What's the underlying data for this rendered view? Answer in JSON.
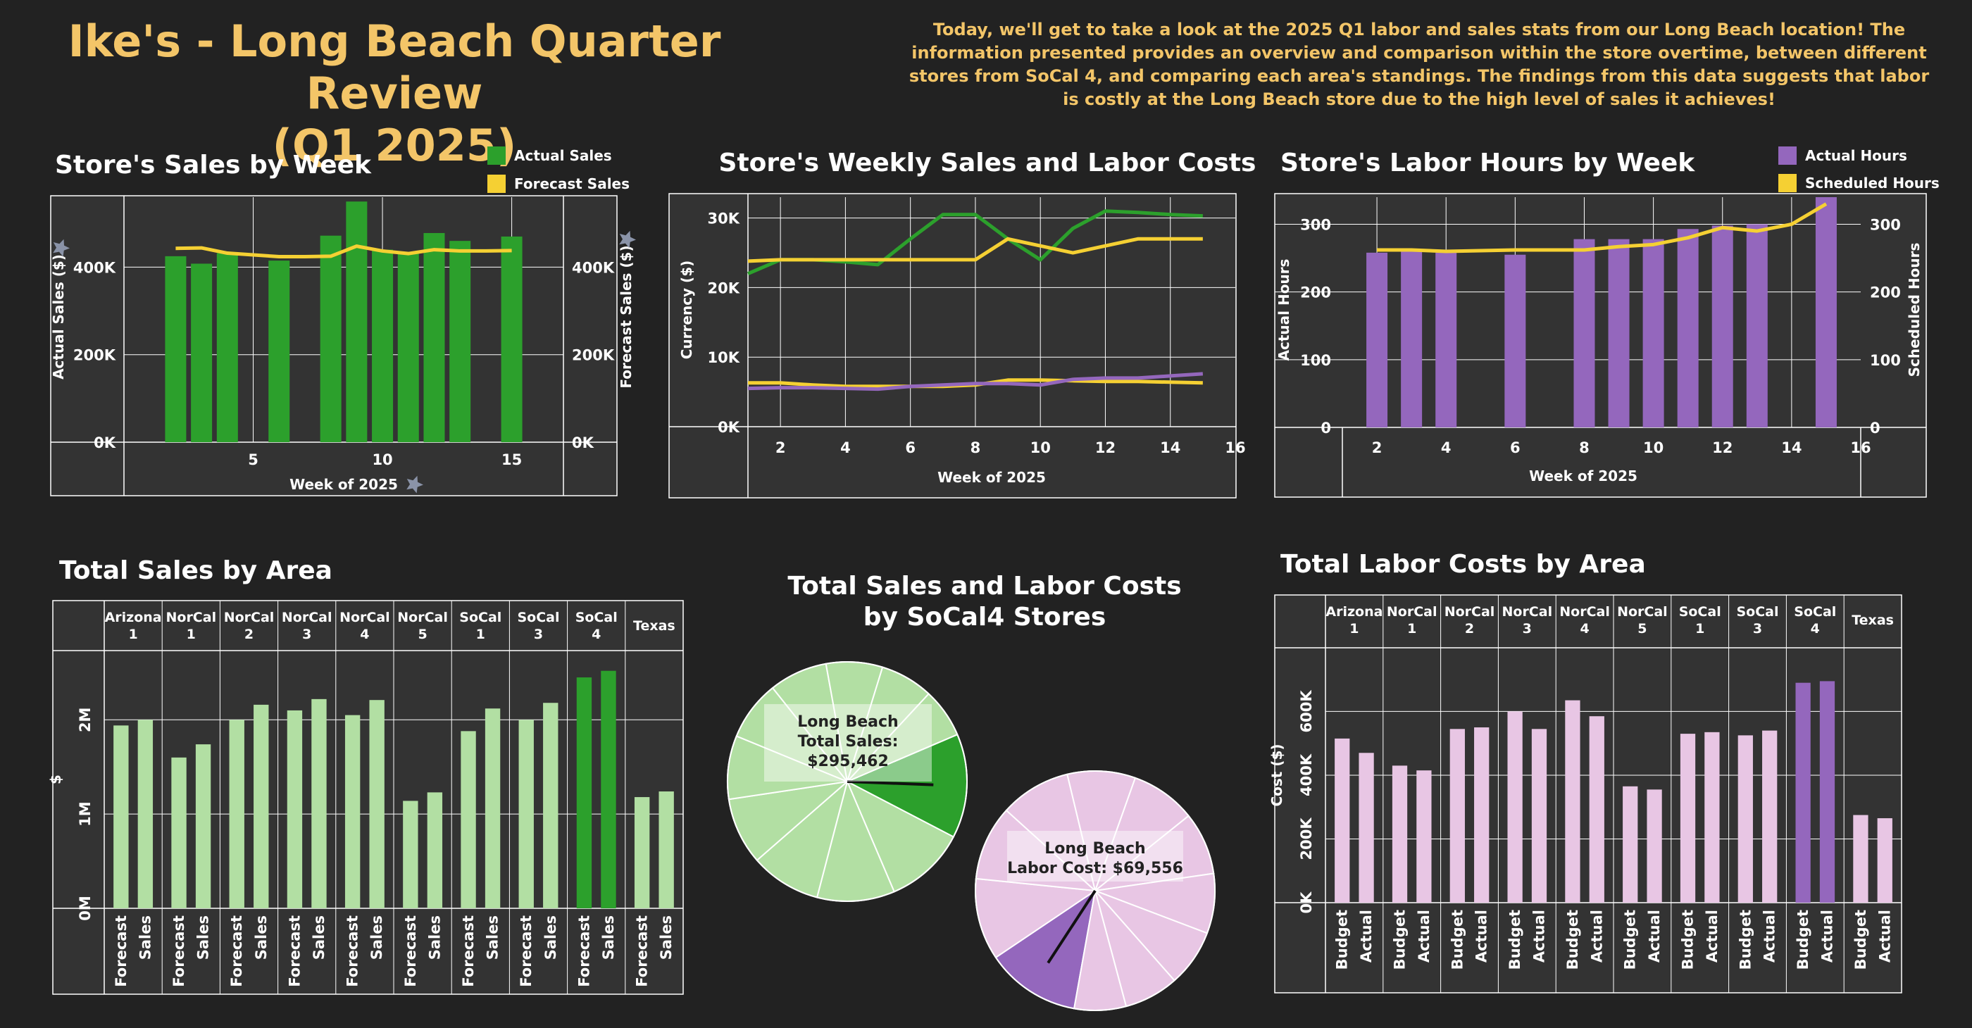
{
  "header": {
    "title_line1": "Ike's - Long Beach Quarter Review",
    "title_line2": "(Q1 2025)",
    "intro": "Today, we'll get to take a look at the 2025 Q1 labor and sales stats from our Long Beach location! The information presented provides an overview and comparison within the store overtime, between different stores from SoCal 4, and comparing each area's standings. The findings from this data suggests that labor is costly at the Long Beach store due to the high level of sales it achieves!"
  },
  "colors": {
    "background": "#222222",
    "panel": "#333333",
    "grid": "#ffffff",
    "title_accent": "#f3c568",
    "green": "#2ca02c",
    "light_green": "#b2dfa3",
    "gold": "#f5d033",
    "purple": "#9467bd",
    "light_purple": "#e8c6e4"
  },
  "chart_data": [
    {
      "id": "sales_by_week",
      "type": "bar",
      "title": "Store's Sales by Week",
      "xlabel": "Week of 2025",
      "ylabel": "Actual Sales ($)",
      "y2label": "Forecast Sales ($)",
      "xlim": [
        0,
        17
      ],
      "ylim": [
        0,
        560000
      ],
      "xticks": [
        5,
        10,
        15
      ],
      "xtick_labels": [
        "5",
        "10",
        "15"
      ],
      "yticks": [
        0,
        200000,
        400000
      ],
      "ytick_labels": [
        "0K",
        "200K",
        "400K"
      ],
      "legend": "top-right",
      "series": [
        {
          "name": "Actual Sales",
          "kind": "bar",
          "color": "#2ca02c",
          "x": [
            2,
            3,
            4,
            6,
            8,
            9,
            10,
            11,
            12,
            13,
            15
          ],
          "values": [
            425000,
            408000,
            432000,
            415000,
            472000,
            550000,
            440000,
            432000,
            478000,
            460000,
            470000
          ]
        },
        {
          "name": "Forecast Sales",
          "kind": "line",
          "color": "#f5d033",
          "x": [
            2,
            3,
            4,
            5,
            6,
            7,
            8,
            9,
            10,
            11,
            12,
            13,
            14,
            15
          ],
          "values": [
            443000,
            444000,
            432000,
            428000,
            424000,
            424000,
            425000,
            448000,
            437000,
            431000,
            440000,
            437000,
            437000,
            438000
          ]
        }
      ]
    },
    {
      "id": "weekly_sales_labor",
      "type": "line",
      "title": "Store's Weekly Sales and Labor Costs",
      "xlabel": "Week of 2025",
      "ylabel": "Currency ($)",
      "xlim": [
        1,
        16
      ],
      "ylim": [
        0,
        33000
      ],
      "xticks": [
        2,
        4,
        6,
        8,
        10,
        12,
        14,
        16
      ],
      "xtick_labels": [
        "2",
        "4",
        "6",
        "8",
        "10",
        "12",
        "14",
        "16"
      ],
      "yticks": [
        0,
        10000,
        20000,
        30000
      ],
      "ytick_labels": [
        "0K",
        "10K",
        "20K",
        "30K"
      ],
      "series": [
        {
          "color": "#2ca02c",
          "x": [
            1,
            2,
            3,
            4,
            5,
            6,
            7,
            8,
            9,
            10,
            11,
            12,
            13,
            14,
            15
          ],
          "values": [
            22000,
            24000,
            24000,
            23700,
            23300,
            27000,
            30500,
            30500,
            27000,
            24000,
            28500,
            31000,
            30800,
            30500,
            30300
          ]
        },
        {
          "color": "#f5d033",
          "x": [
            1,
            2,
            3,
            4,
            5,
            6,
            7,
            8,
            9,
            10,
            11,
            12,
            13,
            14,
            15
          ],
          "values": [
            23800,
            24000,
            24000,
            24000,
            24000,
            24000,
            24000,
            24000,
            27000,
            26000,
            25000,
            26000,
            27000,
            27000,
            27000
          ]
        },
        {
          "color": "#f5d033",
          "x": [
            1,
            2,
            3,
            4,
            5,
            6,
            7,
            8,
            9,
            10,
            11,
            12,
            13,
            14,
            15
          ],
          "values": [
            6300,
            6300,
            6000,
            5800,
            5800,
            5800,
            5800,
            6000,
            6700,
            6700,
            6600,
            6500,
            6500,
            6400,
            6300
          ]
        },
        {
          "color": "#9467bd",
          "x": [
            1,
            2,
            3,
            4,
            5,
            6,
            7,
            8,
            9,
            10,
            11,
            12,
            13,
            14,
            15
          ],
          "values": [
            5500,
            5600,
            5600,
            5500,
            5400,
            5800,
            6000,
            6200,
            6200,
            6000,
            6800,
            7000,
            7000,
            7300,
            7600
          ]
        }
      ]
    },
    {
      "id": "labor_hours_by_week",
      "type": "bar",
      "title": "Store's Labor Hours by Week",
      "xlabel": "Week of 2025",
      "ylabel": "Actual Hours",
      "y2label": "Scheduled Hours",
      "xlim": [
        1,
        16
      ],
      "ylim": [
        0,
        340
      ],
      "xticks": [
        2,
        4,
        6,
        8,
        10,
        12,
        14,
        16
      ],
      "xtick_labels": [
        "2",
        "4",
        "6",
        "8",
        "10",
        "12",
        "14",
        "16"
      ],
      "yticks": [
        0,
        100,
        200,
        300
      ],
      "ytick_labels": [
        "0",
        "100",
        "200",
        "300"
      ],
      "legend": "top-right",
      "series": [
        {
          "name": "Actual Hours",
          "kind": "bar",
          "color": "#9467bd",
          "x": [
            2,
            3,
            4,
            6,
            8,
            9,
            10,
            11,
            12,
            13,
            15
          ],
          "values": [
            258,
            262,
            258,
            255,
            278,
            278,
            278,
            293,
            298,
            300,
            340
          ]
        },
        {
          "name": "Scheduled Hours",
          "kind": "line",
          "color": "#f5d033",
          "x": [
            2,
            3,
            4,
            5,
            6,
            7,
            8,
            9,
            10,
            11,
            12,
            13,
            14,
            15
          ],
          "values": [
            262,
            262,
            260,
            261,
            262,
            262,
            262,
            267,
            270,
            280,
            295,
            290,
            300,
            330
          ]
        }
      ]
    },
    {
      "id": "total_sales_by_area",
      "type": "bar",
      "title": "Total Sales by Area",
      "ylabel": "$",
      "ylim": [
        0,
        2600000
      ],
      "yticks": [
        0,
        1000000,
        2000000
      ],
      "ytick_labels": [
        "0M",
        "1M",
        "2M"
      ],
      "groups": [
        "Arizona 1",
        "NorCal 1",
        "NorCal 2",
        "NorCal 3",
        "NorCal 4",
        "NorCal 5",
        "SoCal 1",
        "SoCal 3",
        "SoCal 4",
        "Texas"
      ],
      "subcategories": [
        "Forecast",
        "Sales"
      ],
      "highlight_group": "SoCal 4",
      "series": [
        {
          "name": "Forecast",
          "values": [
            1940000,
            1600000,
            2000000,
            2100000,
            2050000,
            1140000,
            1880000,
            2000000,
            2450000,
            1180000
          ]
        },
        {
          "name": "Sales",
          "values": [
            2000000,
            1740000,
            2160000,
            2220000,
            2210000,
            1230000,
            2120000,
            2180000,
            2520000,
            1240000
          ]
        }
      ]
    },
    {
      "id": "socal4_sales_pie",
      "type": "pie",
      "title": "Total Sales and Labor Costs by SoCal4 Stores",
      "label": "Long Beach Total Sales: $295,462",
      "highlight": "Long Beach",
      "slices": [
        295462,
        230000,
        220000,
        200000,
        190000,
        180000,
        170000,
        165000,
        160000,
        150000,
        140000
      ]
    },
    {
      "id": "socal4_labor_pie",
      "type": "pie",
      "label": "Long Beach Labor Cost: $69,556",
      "highlight": "Long Beach",
      "slices": [
        69556,
        60000,
        55000,
        52000,
        50000,
        48000,
        46000,
        44000,
        42000,
        40000,
        38000
      ]
    },
    {
      "id": "total_labor_by_area",
      "type": "bar",
      "title": "Total Labor Costs by Area",
      "ylabel": "Cost ($)",
      "ylim": [
        0,
        760000
      ],
      "yticks": [
        0,
        200000,
        400000,
        600000
      ],
      "ytick_labels": [
        "0K",
        "200K",
        "400K",
        "600K"
      ],
      "groups": [
        "Arizona 1",
        "NorCal 1",
        "NorCal 2",
        "NorCal 3",
        "NorCal 4",
        "NorCal 5",
        "SoCal 1",
        "SoCal 3",
        "SoCal 4",
        "Texas"
      ],
      "subcategories": [
        "Budget",
        "Actual"
      ],
      "highlight_group": "SoCal 4",
      "series": [
        {
          "name": "Budget",
          "values": [
            515000,
            430000,
            545000,
            600000,
            635000,
            365000,
            530000,
            525000,
            690000,
            275000
          ]
        },
        {
          "name": "Actual",
          "values": [
            470000,
            415000,
            550000,
            545000,
            585000,
            355000,
            535000,
            540000,
            695000,
            265000
          ]
        }
      ]
    }
  ]
}
